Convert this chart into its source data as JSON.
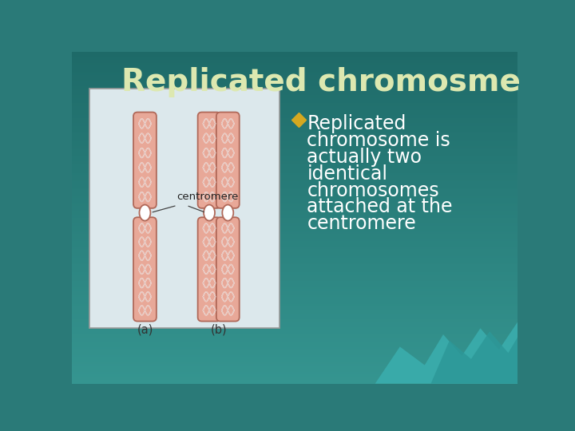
{
  "title": "Replicated chromosme",
  "title_color": "#dde8b0",
  "title_fontsize": 28,
  "bg_color": "#2a7a78",
  "bg_top": "#1e6a68",
  "bg_bottom": "#2d8a88",
  "bullet_text_lines": [
    "Replicated",
    "chromosome is",
    "actually two",
    "identical",
    "chromosomes",
    "attached at the",
    "centromere"
  ],
  "bullet_color": "#ffffff",
  "bullet_marker_color": "#d4a820",
  "bullet_fontsize": 17,
  "image_box_bg": "#dce8ec",
  "image_box_edge": "#999999",
  "label_a": "(a)",
  "label_b": "(b)",
  "centromere_label": "centromere",
  "chrom_color": "#e8a898",
  "chrom_outline": "#b06858",
  "wave_color": "#ffffff",
  "wave_bottom_color1": "#3aadad",
  "wave_bottom_color2": "#2d9898"
}
